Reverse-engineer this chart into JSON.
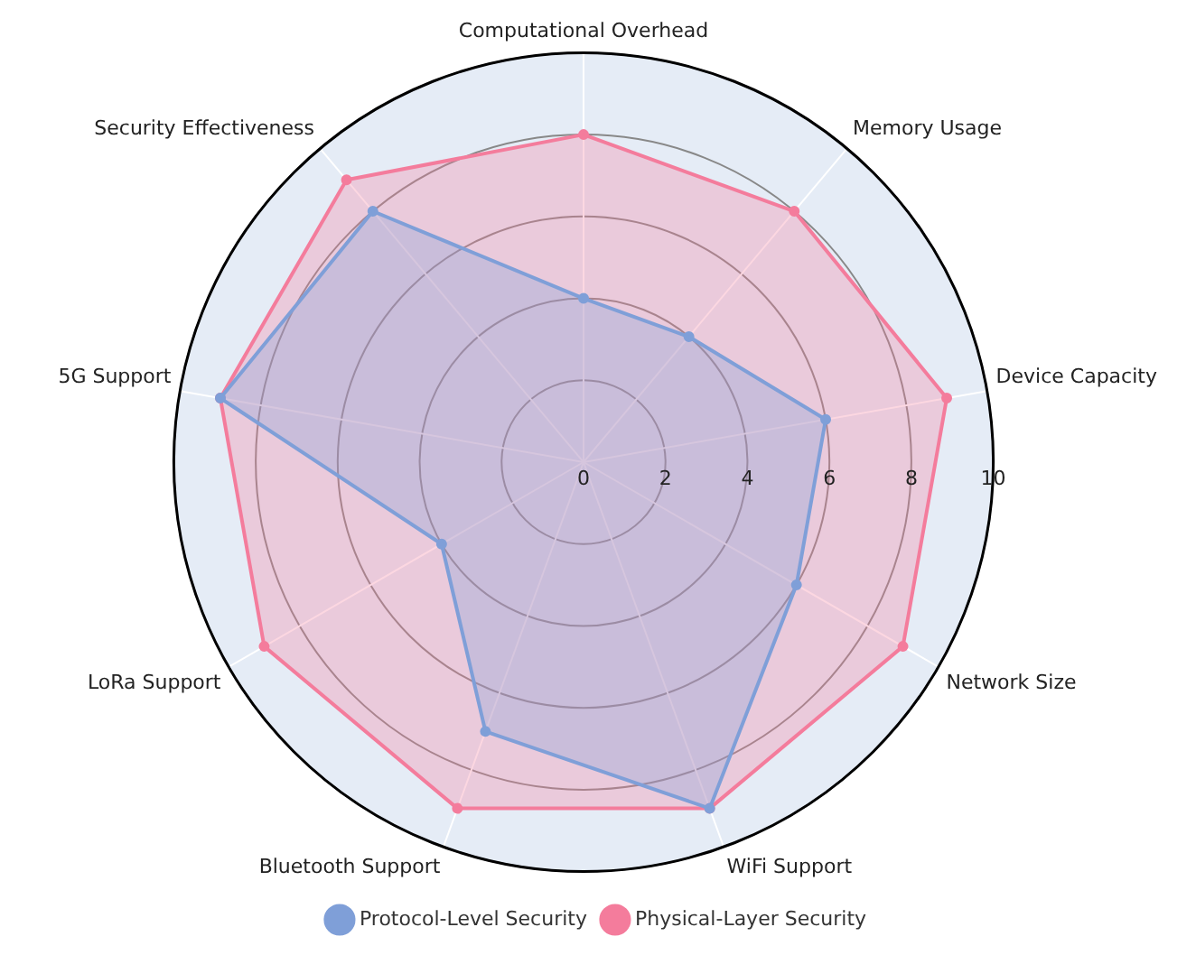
{
  "chart_data": {
    "type": "radar",
    "categories": [
      "Computational Overhead",
      "Memory Usage",
      "Device Capacity",
      "Network Size",
      "WiFi Support",
      "Bluetooth Support",
      "LoRa Support",
      "5G Support",
      "Security Effectiveness"
    ],
    "series": [
      {
        "name": "Protocol-Level Security",
        "color": "#7f9fd8",
        "values": [
          4,
          4,
          6,
          6,
          9,
          7,
          4,
          9,
          8
        ]
      },
      {
        "name": "Physical-Layer Security",
        "color": "#f47c9c",
        "values": [
          8,
          8,
          9,
          9,
          9,
          9,
          9,
          9,
          9
        ]
      }
    ],
    "ylim": [
      0,
      10
    ],
    "yticks": [
      0,
      2,
      4,
      6,
      8,
      10
    ],
    "legend": "bottom",
    "marker": "circle",
    "line_style": "solid",
    "grid": true
  }
}
